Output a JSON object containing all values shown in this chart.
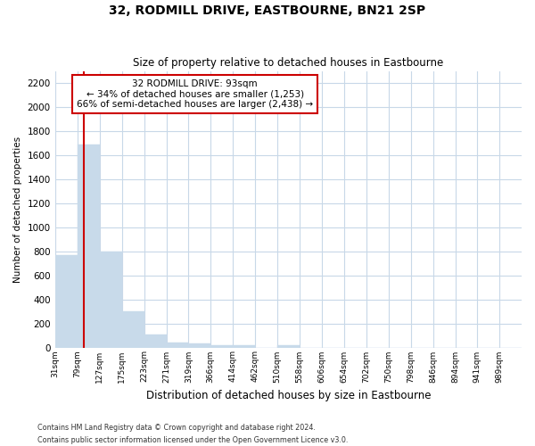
{
  "title": "32, RODMILL DRIVE, EASTBOURNE, BN21 2SP",
  "subtitle": "Size of property relative to detached houses in Eastbourne",
  "xlabel": "Distribution of detached houses by size in Eastbourne",
  "ylabel": "Number of detached properties",
  "annotation_line1": "32 RODMILL DRIVE: 93sqm",
  "annotation_line2": "← 34% of detached houses are smaller (1,253)",
  "annotation_line3": "66% of semi-detached houses are larger (2,438) →",
  "vline_color": "#cc0000",
  "vline_x": 93,
  "categories": [
    "31sqm",
    "79sqm",
    "127sqm",
    "175sqm",
    "223sqm",
    "271sqm",
    "319sqm",
    "366sqm",
    "414sqm",
    "462sqm",
    "510sqm",
    "558sqm",
    "606sqm",
    "654sqm",
    "702sqm",
    "750sqm",
    "798sqm",
    "846sqm",
    "894sqm",
    "941sqm",
    "989sqm"
  ],
  "bin_edges": [
    31,
    79,
    127,
    175,
    223,
    271,
    319,
    366,
    414,
    462,
    510,
    558,
    606,
    654,
    702,
    750,
    798,
    846,
    894,
    941,
    989,
    1037
  ],
  "values": [
    770,
    1690,
    800,
    300,
    110,
    43,
    32,
    22,
    22,
    0,
    22,
    0,
    0,
    0,
    0,
    0,
    0,
    0,
    0,
    0,
    0
  ],
  "ylim": [
    0,
    2300
  ],
  "yticks": [
    0,
    200,
    400,
    600,
    800,
    1000,
    1200,
    1400,
    1600,
    1800,
    2000,
    2200
  ],
  "bar_color": "#c8daea",
  "bar_edge_color": "#c8daea",
  "background_color": "#ffffff",
  "plot_bg_color": "#ffffff",
  "grid_color": "#c8d8e8",
  "footer": "Contains HM Land Registry data © Crown copyright and database right 2024.\nContains public sector information licensed under the Open Government Licence v3.0."
}
